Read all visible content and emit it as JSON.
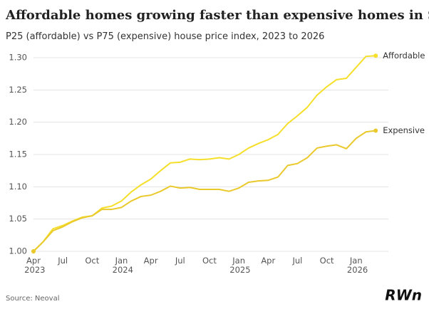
{
  "chart_data": {
    "type": "line",
    "title": "Affordable homes growing faster than expensive homes in Sydney",
    "subtitle": "P25 (affordable) vs P75 (expensive) house price index, 2023 to 2026",
    "source": "Source: Neoval",
    "logo": "RWn",
    "categories": [
      "Apr 2023",
      null,
      null,
      "Jul",
      null,
      null,
      "Oct",
      null,
      null,
      "Jan 2024",
      null,
      null,
      "Apr",
      null,
      null,
      "Jul",
      null,
      null,
      "Oct",
      null,
      null,
      "Jan 2025",
      null,
      null,
      "Apr",
      null,
      null,
      "Jul",
      null,
      null,
      "Oct",
      null,
      null,
      "Jan 2026",
      null,
      null
    ],
    "series": [
      {
        "name": "Affordable",
        "color": "#f5df2a",
        "values": [
          1.0,
          1.015,
          1.035,
          1.04,
          1.047,
          1.053,
          1.055,
          1.067,
          1.07,
          1.078,
          1.092,
          1.103,
          1.112,
          1.125,
          1.137,
          1.138,
          1.143,
          1.142,
          1.143,
          1.145,
          1.143,
          1.15,
          1.16,
          1.167,
          1.173,
          1.181,
          1.198,
          1.21,
          1.223,
          1.242,
          1.255,
          1.266,
          1.268,
          1.285,
          1.302,
          1.303
        ]
      },
      {
        "name": "Expensive",
        "color": "#e9c92b",
        "values": [
          1.0,
          1.015,
          1.032,
          1.038,
          1.046,
          1.052,
          1.055,
          1.065,
          1.065,
          1.068,
          1.078,
          1.085,
          1.087,
          1.093,
          1.101,
          1.098,
          1.099,
          1.096,
          1.096,
          1.096,
          1.093,
          1.098,
          1.107,
          1.109,
          1.11,
          1.115,
          1.133,
          1.136,
          1.145,
          1.16,
          1.163,
          1.165,
          1.159,
          1.175,
          1.185,
          1.187
        ]
      }
    ],
    "ylim": [
      1.0,
      1.3
    ],
    "yticks": [
      {
        "value": 1.0,
        "label": "1.00"
      },
      {
        "value": 1.05,
        "label": "1.05"
      },
      {
        "value": 1.1,
        "label": "1.10"
      },
      {
        "value": 1.15,
        "label": "1.15"
      },
      {
        "value": 1.2,
        "label": "1.20"
      },
      {
        "value": 1.25,
        "label": "1.25"
      },
      {
        "value": 1.3,
        "label": "1.30"
      }
    ],
    "grid": true
  }
}
